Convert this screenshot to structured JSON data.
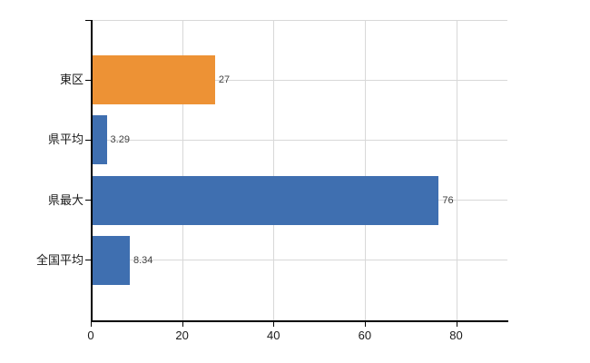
{
  "chart_data": {
    "type": "bar",
    "orientation": "horizontal",
    "title": "",
    "categories": [
      "東区",
      "県平均",
      "県最大",
      "全国平均"
    ],
    "values": [
      27,
      3.29,
      76,
      8.34
    ],
    "value_labels": [
      "27",
      "3.29",
      "76",
      "8.34"
    ],
    "bar_colors": [
      "#ED9235",
      "#3F6FB0",
      "#3F6FB0",
      "#3F6FB0"
    ],
    "x_tick_values": [
      0,
      20,
      40,
      60,
      80
    ],
    "x_tick_labels": [
      "0",
      "20",
      "40",
      "60",
      "80"
    ],
    "xlim": [
      0,
      91.2
    ],
    "grid": true,
    "legend": "none",
    "colors": {
      "bar_orange": "#ED9235",
      "bar_blue": "#3F6FB0",
      "axis": "#000000",
      "grid": "#d8d8d8",
      "category_text": "#1a1a1a",
      "value_text": "#404040",
      "tick_text": "#1a1a1a",
      "background": "#ffffff"
    }
  }
}
